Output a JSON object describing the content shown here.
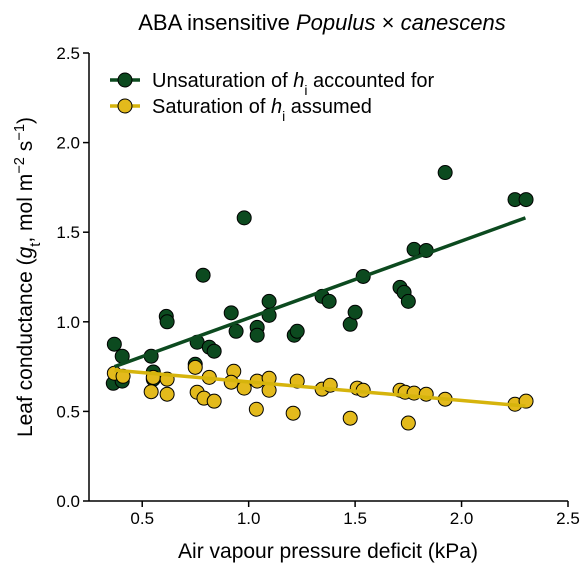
{
  "chart_data": {
    "type": "scatter",
    "title_parts": [
      {
        "text": "ABA insensitive ",
        "style": "normal"
      },
      {
        "text": "Populus",
        "style": "italic"
      },
      {
        "text": " × ",
        "style": "normal"
      },
      {
        "text": "canescens",
        "style": "italic"
      }
    ],
    "x_label_parts": [
      {
        "text": "Air vapour pressure deficit (kPa)",
        "style": "normal"
      }
    ],
    "y_label_parts": [
      {
        "text": "Leaf conductance (",
        "style": "normal"
      },
      {
        "text": "g",
        "style": "italic"
      },
      {
        "text": "t",
        "style": "sub"
      },
      {
        "text": ", mol m",
        "style": "normal"
      },
      {
        "text": "−2",
        "style": "sup"
      },
      {
        "text": " s",
        "style": "normal"
      },
      {
        "text": "−1",
        "style": "sup"
      },
      {
        "text": ")",
        "style": "normal"
      }
    ],
    "xlim": [
      0.25,
      2.5
    ],
    "ylim": [
      0,
      2.5
    ],
    "xticks": [
      0.5,
      {
        "value": 1.0,
        "label": "1.0"
      },
      1.5,
      {
        "value": 2.0,
        "label": "2.0"
      },
      2.5
    ],
    "yticks": [
      {
        "value": 0.0,
        "label": "0.0"
      },
      0.5,
      {
        "value": 1.0,
        "label": "1.0"
      },
      1.5,
      {
        "value": 2.0,
        "label": "2.0"
      },
      2.5
    ],
    "legend": "upper left",
    "series": [
      {
        "name_parts": [
          {
            "text": "Unsaturation of ",
            "style": "normal"
          },
          {
            "text": "h",
            "style": "italic"
          },
          {
            "text": "i",
            "style": "sub"
          },
          {
            "text": " accounted for",
            "style": "normal"
          }
        ],
        "color": "#0c4a1f",
        "line_color": "#0c4a1f",
        "x": [
          0.369,
          0.364,
          0.406,
          0.406,
          0.542,
          0.552,
          0.552,
          0.613,
          0.617,
          0.758,
          0.749,
          0.786,
          0.815,
          0.838,
          0.918,
          0.941,
          0.979,
          1.04,
          1.04,
          1.096,
          1.096,
          1.214,
          1.228,
          1.345,
          1.378,
          1.477,
          1.5,
          1.538,
          1.711,
          1.73,
          1.75,
          1.777,
          1.834,
          1.923,
          2.251,
          2.303
        ],
        "y": [
          0.875,
          0.657,
          0.808,
          0.669,
          0.808,
          0.72,
          0.68,
          1.03,
          1.0,
          0.886,
          0.763,
          1.26,
          0.858,
          0.836,
          1.05,
          0.947,
          1.58,
          0.969,
          0.925,
          1.114,
          1.036,
          0.925,
          0.947,
          1.142,
          1.114,
          0.986,
          1.053,
          1.253,
          1.192,
          1.164,
          1.114,
          1.404,
          1.398,
          1.833,
          1.682,
          1.682
        ],
        "fit_x": [
          0.37,
          2.3
        ],
        "fit_y": [
          0.75,
          1.58
        ]
      },
      {
        "name_parts": [
          {
            "text": "Saturation of ",
            "style": "normal"
          },
          {
            "text": "h",
            "style": "italic"
          },
          {
            "text": "i",
            "style": "sub"
          },
          {
            "text": " assumed",
            "style": "normal"
          }
        ],
        "color": "#e3ba1c",
        "line_color": "#d6b40c",
        "x": [
          0.369,
          0.41,
          0.552,
          0.542,
          0.617,
          0.617,
          0.749,
          0.758,
          0.79,
          0.815,
          0.838,
          0.93,
          0.918,
          0.979,
          1.036,
          1.04,
          1.096,
          1.096,
          1.209,
          1.228,
          1.345,
          1.383,
          1.477,
          1.51,
          1.538,
          1.711,
          1.735,
          1.75,
          1.777,
          1.834,
          1.923,
          2.251,
          2.303
        ],
        "y": [
          0.713,
          0.696,
          0.69,
          0.61,
          0.68,
          0.596,
          0.746,
          0.607,
          0.574,
          0.69,
          0.557,
          0.724,
          0.663,
          0.63,
          0.512,
          0.669,
          0.685,
          0.618,
          0.49,
          0.669,
          0.624,
          0.646,
          0.462,
          0.63,
          0.618,
          0.618,
          0.607,
          0.435,
          0.602,
          0.596,
          0.568,
          0.54,
          0.557
        ],
        "fit_x": [
          0.37,
          2.3
        ],
        "fit_y": [
          0.73,
          0.53
        ]
      }
    ]
  }
}
